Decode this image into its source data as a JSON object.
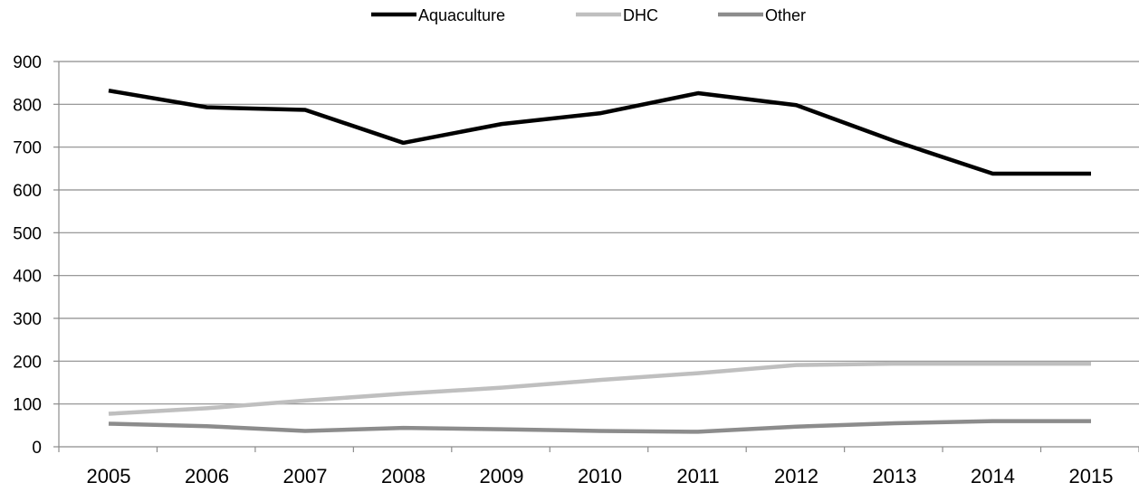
{
  "chart_data": {
    "type": "line",
    "title": "",
    "xlabel": "",
    "ylabel": "",
    "categories": [
      "2005",
      "2006",
      "2007",
      "2008",
      "2009",
      "2010",
      "2011",
      "2012",
      "2013",
      "2014",
      "2015"
    ],
    "ylim": [
      0,
      900
    ],
    "yticks": [
      "0",
      "100",
      "200",
      "300",
      "400",
      "500",
      "600",
      "700",
      "800",
      "900"
    ],
    "grid": true,
    "legend_position": "top",
    "series": [
      {
        "name": "Aquaculture",
        "color": "#000000",
        "values": [
          832,
          793,
          787,
          710,
          754,
          779,
          826,
          798,
          714,
          638,
          638
        ]
      },
      {
        "name": "DHC",
        "color": "#bfbfbf",
        "values": [
          77,
          90,
          108,
          124,
          138,
          156,
          172,
          191,
          194,
          194,
          194
        ]
      },
      {
        "name": "Other",
        "color": "#8c8c8c",
        "values": [
          54,
          48,
          37,
          44,
          41,
          37,
          35,
          47,
          55,
          60,
          60
        ]
      }
    ]
  }
}
